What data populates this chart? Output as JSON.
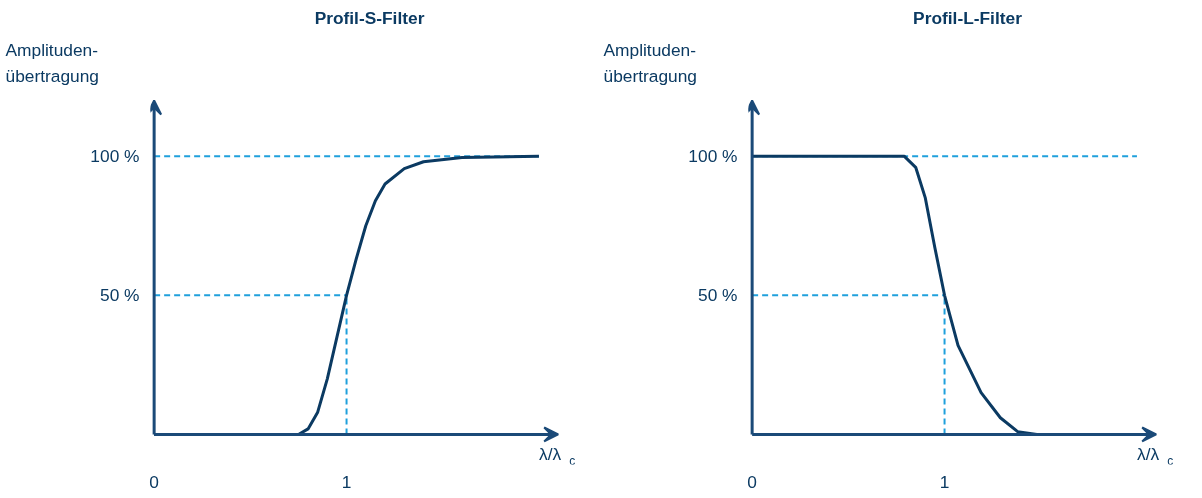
{
  "chart_data": [
    {
      "type": "line",
      "title": "Profil-S-Filter",
      "xlabel": "λ/λ$_{c}$",
      "ylabel": "Amplituden-\nübertragung",
      "x": [
        0,
        0.5,
        0.75,
        0.8,
        0.85,
        0.9,
        0.95,
        1.0,
        1.05,
        1.1,
        1.15,
        1.2,
        1.3,
        1.4,
        1.6,
        2.0
      ],
      "series": [
        {
          "color": "#0b3a62",
          "values": [
            0,
            0,
            0,
            2,
            8,
            20,
            35,
            50,
            63,
            75,
            84,
            90,
            95.5,
            98,
            99.5,
            100
          ]
        }
      ],
      "xlim": [
        0,
        2.1
      ],
      "ylim": [
        0,
        120
      ],
      "xticks": [
        {
          "value": 0,
          "label": "0"
        },
        1
      ],
      "yticks": [
        {
          "value": 0,
          "label": null
        },
        {
          "value": 50,
          "label": "50 %"
        },
        {
          "value": 100,
          "label": "100 %"
        }
      ],
      "ref_lines": [
        {
          "axis": "y",
          "value": 100,
          "color": "#1fa0dc",
          "line_style": "dashed"
        },
        {
          "axis": "y",
          "value": 50,
          "color": "#1fa0dc",
          "line_style": "dashed"
        },
        {
          "axis": "x",
          "value": 1,
          "color": "#1fa0dc",
          "line_style": "dashed"
        }
      ],
      "grid": false,
      "marker": "none",
      "line_style": "solid"
    },
    {
      "type": "line",
      "title": "Profil-L-Filter",
      "xlabel": "λ/λ$_{c}$",
      "ylabel": "Amplituden-\nübertragung",
      "x": [
        0,
        0.5,
        0.79,
        0.85,
        0.9,
        0.95,
        1.0,
        1.07,
        1.19,
        1.29,
        1.38,
        1.48,
        2.0
      ],
      "series": [
        {
          "color": "#0b3a62",
          "values": [
            100,
            100,
            100,
            96,
            85,
            67,
            50,
            32,
            15,
            6,
            1,
            0,
            0
          ]
        }
      ],
      "xlim": [
        0,
        2.1
      ],
      "ylim": [
        0,
        120
      ],
      "xticks": [
        {
          "value": 0,
          "label": "0"
        },
        1
      ],
      "yticks": [
        {
          "value": 0,
          "label": null
        },
        {
          "value": 50,
          "label": "50 %"
        },
        {
          "value": 100,
          "label": "100 %"
        }
      ],
      "ref_lines": [
        {
          "axis": "y",
          "value": 100,
          "color": "#1fa0dc",
          "line_style": "dashed"
        },
        {
          "axis": "y",
          "value": 50,
          "color": "#1fa0dc",
          "line_style": "dashed"
        },
        {
          "axis": "x",
          "value": 1,
          "color": "#1fa0dc",
          "line_style": "dashed"
        }
      ],
      "grid": false,
      "marker": "none",
      "line_style": "solid"
    }
  ]
}
